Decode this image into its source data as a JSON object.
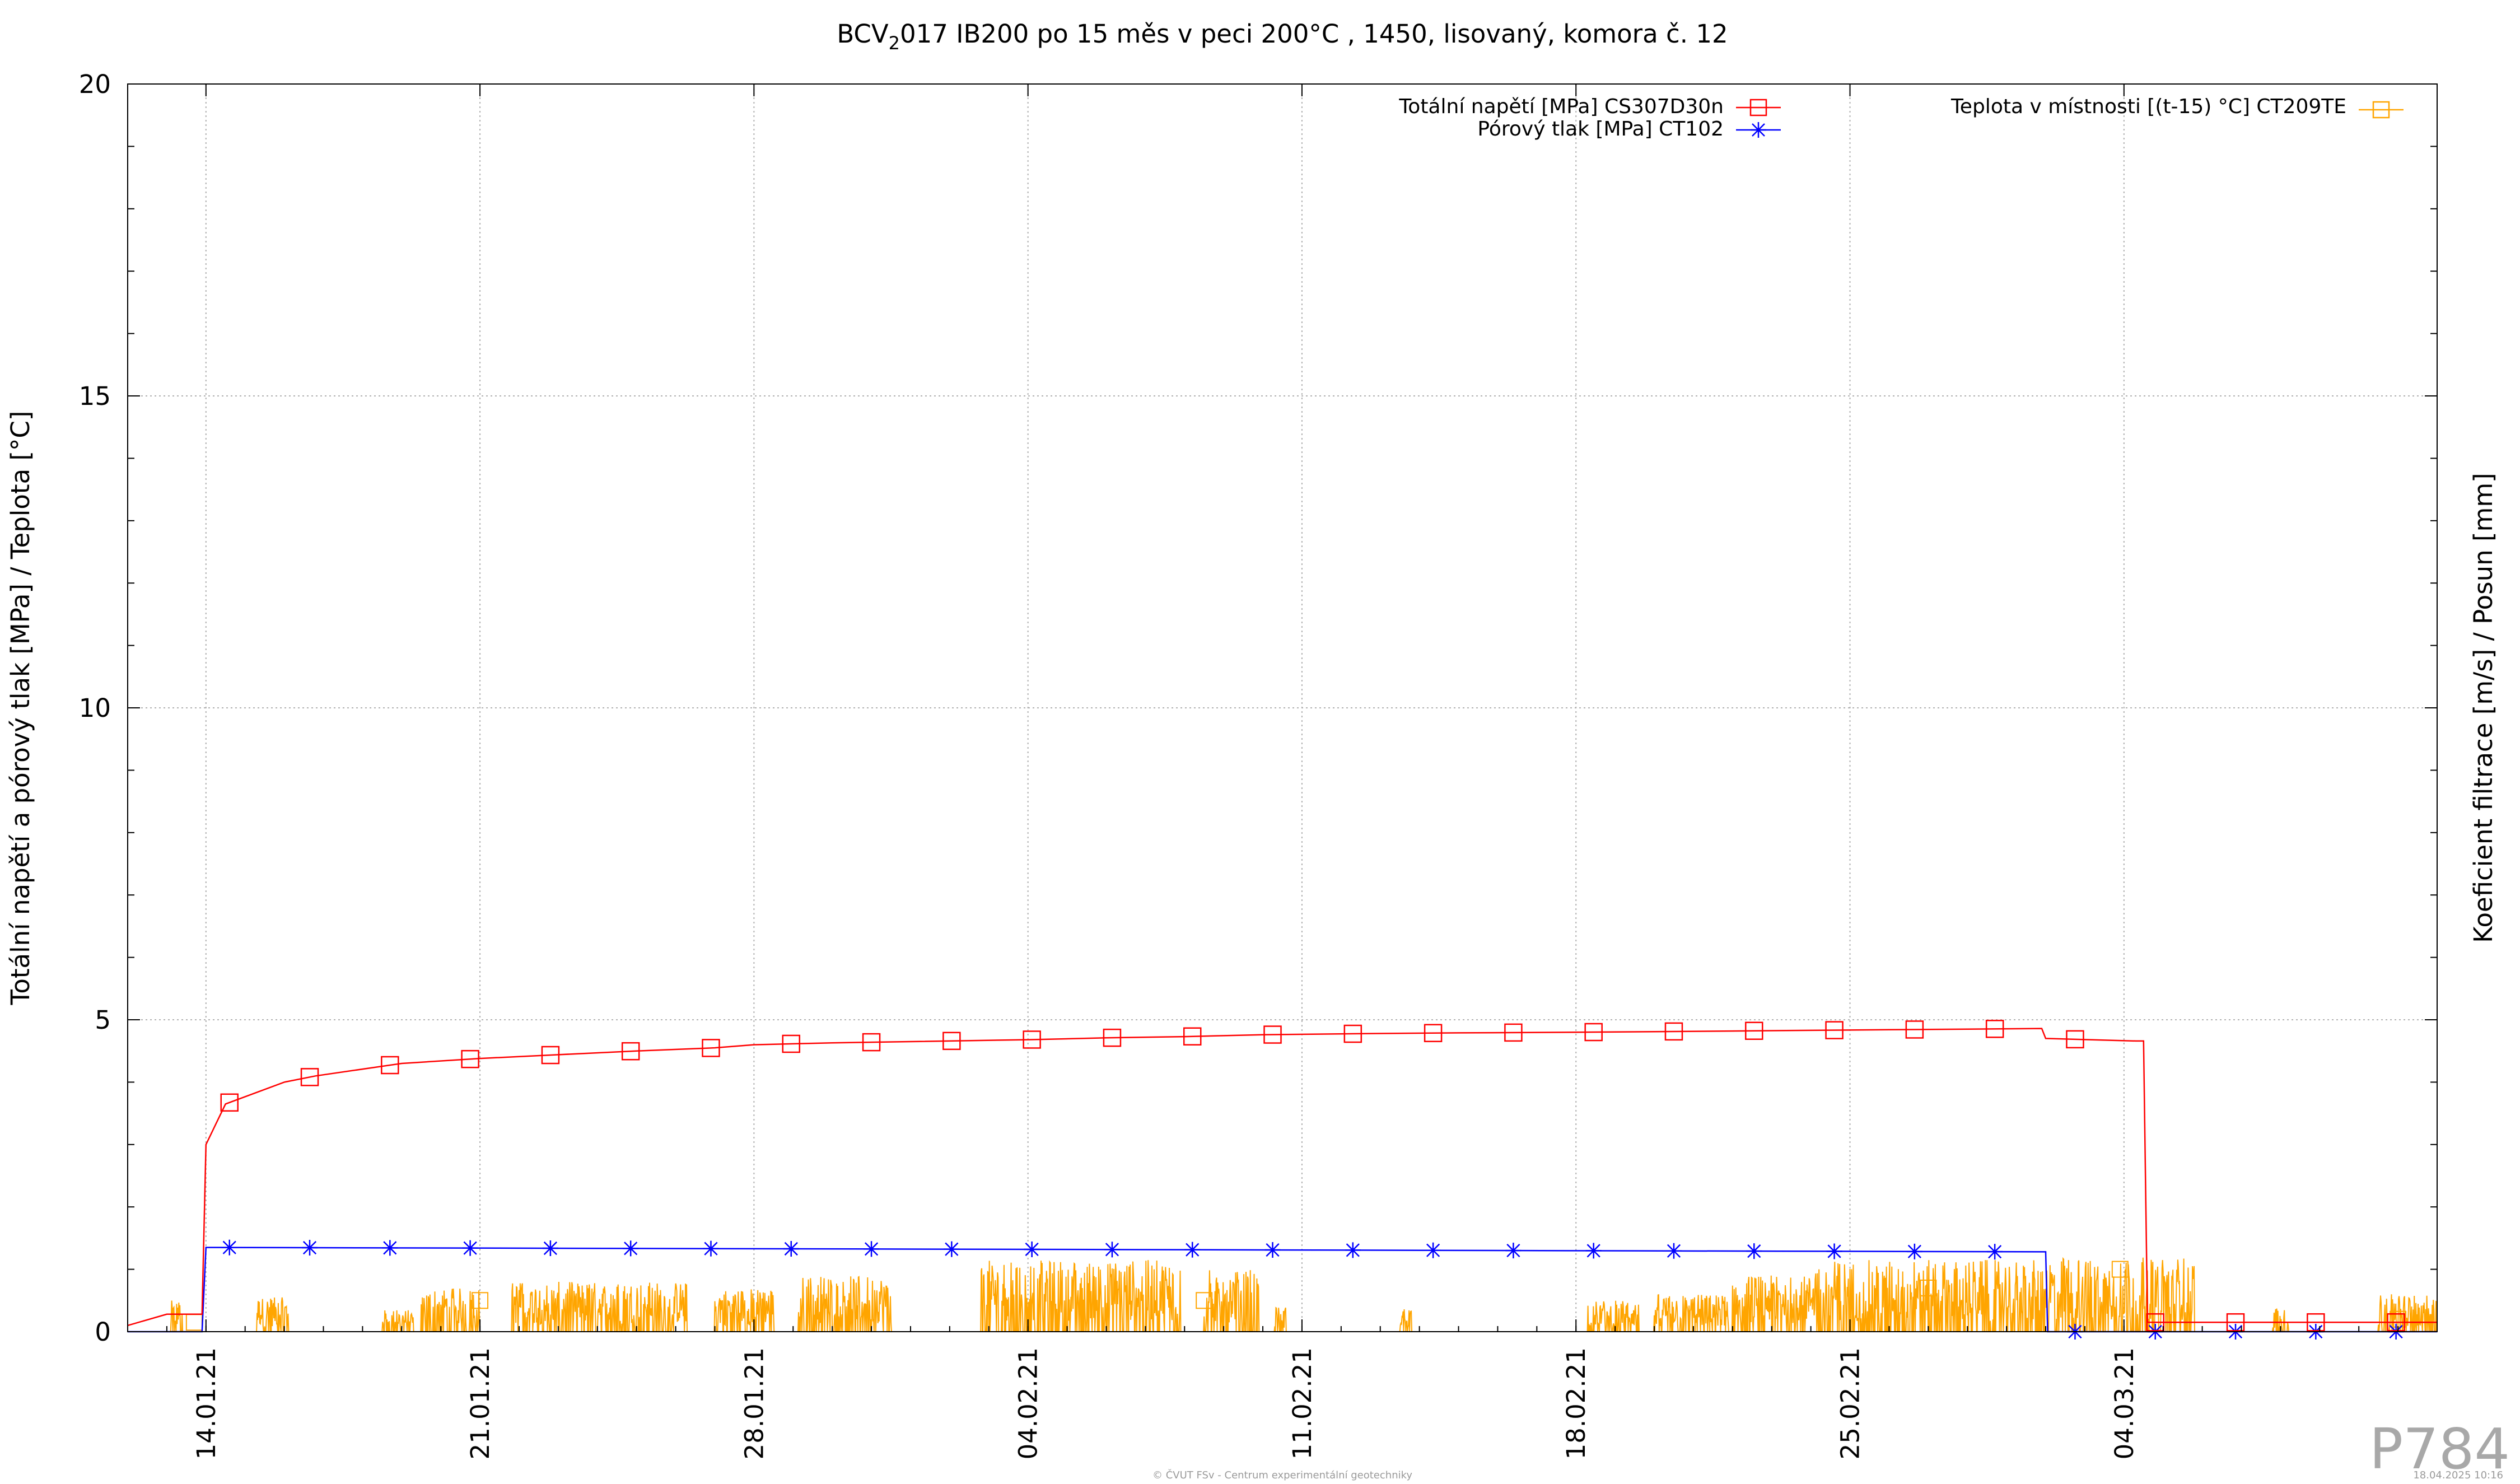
{
  "chart_data": {
    "type": "line",
    "title": "BCV₂017 IB200 po 15 měs v peci 200°C , 1450, lisovaný, komora č. 12",
    "title_parts": {
      "pre": "BCV",
      "sub": "2",
      "post": "017 IB200 po 15 měs v peci 200°C , 1450, lisovaný, komora č. 12"
    },
    "ylabel": "Totální napětí a pórový tlak [MPa] / Teplota [°C]",
    "y2label": "Koeficient filtrace [m/s] / Posun [mm]",
    "xlabel": "",
    "ylim": [
      0,
      20
    ],
    "xlim": [
      "2021-01-12",
      "2021-03-12"
    ],
    "y_ticks": [
      0,
      5,
      10,
      15,
      20
    ],
    "y_tick_labels": [
      "0",
      "5",
      "10",
      "15",
      "20"
    ],
    "x_tick_labels": [
      "14.01.21",
      "21.01.21",
      "28.01.21",
      "04.02.21",
      "11.02.21",
      "18.02.21",
      "25.02.21",
      "04.03.21"
    ],
    "x_tick_dates": [
      "2021-01-14",
      "2021-01-21",
      "2021-01-28",
      "2021-02-04",
      "2021-02-11",
      "2021-02-18",
      "2021-02-25",
      "2021-03-04"
    ],
    "grid": true,
    "legend_placement": "top-right",
    "series": [
      {
        "name": "Totální napětí [MPa] CS307D30n",
        "color": "#ff0000",
        "marker": "square-open",
        "points": [
          [
            "2021-01-12",
            0.1
          ],
          [
            "2021-01-13",
            0.28
          ],
          [
            "2021-01-13.9",
            0.28
          ],
          [
            "2021-01-14",
            3.0
          ],
          [
            "2021-01-14.5",
            3.65
          ],
          [
            "2021-01-16",
            4.0
          ],
          [
            "2021-01-16.8",
            4.1
          ],
          [
            "2021-01-19",
            4.3
          ],
          [
            "2021-01-21",
            4.38
          ],
          [
            "2021-01-23",
            4.44
          ],
          [
            "2021-01-25",
            4.5
          ],
          [
            "2021-01-27",
            4.55
          ],
          [
            "2021-01-28",
            4.6
          ],
          [
            "2021-01-30",
            4.63
          ],
          [
            "2021-02-01",
            4.65
          ],
          [
            "2021-02-04",
            4.68
          ],
          [
            "2021-02-06",
            4.71
          ],
          [
            "2021-02-08",
            4.73
          ],
          [
            "2021-02-10",
            4.76
          ],
          [
            "2021-02-13",
            4.78
          ],
          [
            "2021-02-15",
            4.79
          ],
          [
            "2021-02-18",
            4.8
          ],
          [
            "2021-02-20",
            4.81
          ],
          [
            "2021-02-22",
            4.82
          ],
          [
            "2021-02-24",
            4.83
          ],
          [
            "2021-02-26",
            4.84
          ],
          [
            "2021-02-28",
            4.85
          ],
          [
            "2021-03-01.9",
            4.86
          ],
          [
            "2021-03-02",
            4.7
          ],
          [
            "2021-03-04.3",
            4.66
          ],
          [
            "2021-03-04.5",
            4.66
          ],
          [
            "2021-03-04.6",
            0.15
          ],
          [
            "2021-03-12",
            0.15
          ]
        ]
      },
      {
        "name": "Pórový tlak [MPa] CT102",
        "color": "#0000ff",
        "marker": "asterisk",
        "points": [
          [
            "2021-01-12",
            0.0
          ],
          [
            "2021-01-13.9",
            0.0
          ],
          [
            "2021-01-14",
            1.35
          ],
          [
            "2021-02-04",
            1.32
          ],
          [
            "2021-03-02",
            1.28
          ],
          [
            "2021-03-02.05",
            0.0
          ],
          [
            "2021-03-12",
            0.0
          ]
        ]
      },
      {
        "name": "Teplota v místnosti [(t-15) °C] CT209TE",
        "color": "#ffa500",
        "marker": "square-open",
        "range": [
          0,
          1.2
        ],
        "note_pattern": "noisy daily fluctuation between 0 and ~1.2"
      }
    ]
  },
  "watermark": "P784",
  "footer_center": "© ČVUT FSv - Centrum experimentální geotechniky",
  "footer_right": "18.04.2025 10:16"
}
